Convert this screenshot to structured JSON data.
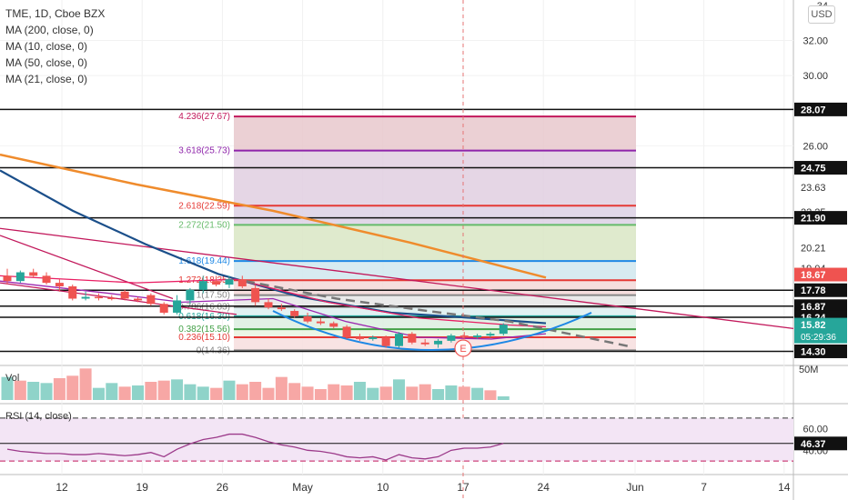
{
  "legend": {
    "title": "TME, 1D, Cboe BZX",
    "indicators": [
      "MA (200, close, 0)",
      "MA (10, close, 0)",
      "MA (50, close, 0)",
      "MA (21, close, 0)"
    ]
  },
  "currency_label": "USD",
  "volume_label": "Vol",
  "rsi_label": "RSI (14, close)",
  "event_marker": "E",
  "chart_data": {
    "type": "candlestick",
    "price_axis": {
      "range": [
        13.6,
        34.3
      ],
      "ticks": [
        "32.00",
        "30.00",
        "26.00"
      ],
      "clipped_top_tick": "34",
      "levels": [
        {
          "label": "28.07",
          "value": 28.07,
          "style": "black"
        },
        {
          "label": "24.75",
          "value": 24.75,
          "style": "black"
        },
        {
          "label": "23.63",
          "value": 23.63,
          "style": "plain"
        },
        {
          "label": "22.25",
          "value": 22.25,
          "style": "plain"
        },
        {
          "label": "21.90",
          "value": 21.9,
          "style": "black"
        },
        {
          "label": "20.21",
          "value": 20.21,
          "style": "plain"
        },
        {
          "label": "19.04",
          "value": 19.04,
          "style": "plain"
        },
        {
          "label": "18.67",
          "value": 18.67,
          "style": "red"
        },
        {
          "label": "17.78",
          "value": 17.78,
          "style": "black"
        },
        {
          "label": "16.87",
          "value": 16.87,
          "style": "black"
        },
        {
          "label": "16.24",
          "value": 16.24,
          "style": "black"
        },
        {
          "label": "15.82",
          "value": 15.82,
          "style": "teal",
          "extra": "05:29:36"
        },
        {
          "label": "14.30",
          "value": 14.3,
          "style": "black"
        }
      ]
    },
    "fibonacci": [
      {
        "label": "4.236(27.67)",
        "value": 27.67,
        "color": "#c2185b"
      },
      {
        "label": "3.618(25.73)",
        "value": 25.73,
        "color": "#8e24aa"
      },
      {
        "label": "2.618(22.59)",
        "value": 22.59,
        "color": "#e53935"
      },
      {
        "label": "2.272(21.50)",
        "value": 21.5,
        "color": "#66bb6a"
      },
      {
        "label": "1.618(19.44)",
        "value": 19.44,
        "color": "#1e88e5"
      },
      {
        "label": "1.272(18.35)",
        "value": 18.35,
        "color": "#e53935"
      },
      {
        "label": "1(17.50)",
        "value": 17.5,
        "color": "#888888"
      },
      {
        "label": "0.786(16.83)",
        "value": 16.83,
        "color": "#888888"
      },
      {
        "label": "0.618(16.30)",
        "value": 16.3,
        "color": "#26a69a"
      },
      {
        "label": "0.382(15.56)",
        "value": 15.56,
        "color": "#43a047"
      },
      {
        "label": "0.236(15.10)",
        "value": 15.1,
        "color": "#e53935"
      },
      {
        "label": "0(14.36)",
        "value": 14.36,
        "color": "#888888"
      }
    ],
    "candles": [
      {
        "i": 0,
        "o": 18.6,
        "h": 19.0,
        "l": 18.1,
        "c": 18.3
      },
      {
        "i": 1,
        "o": 18.3,
        "h": 18.9,
        "l": 18.2,
        "c": 18.8
      },
      {
        "i": 2,
        "o": 18.8,
        "h": 19.0,
        "l": 18.5,
        "c": 18.6
      },
      {
        "i": 3,
        "o": 18.6,
        "h": 18.8,
        "l": 18.1,
        "c": 18.2
      },
      {
        "i": 4,
        "o": 18.2,
        "h": 18.4,
        "l": 17.7,
        "c": 18.0
      },
      {
        "i": 5,
        "o": 18.0,
        "h": 18.1,
        "l": 17.2,
        "c": 17.3
      },
      {
        "i": 6,
        "o": 17.3,
        "h": 17.7,
        "l": 17.2,
        "c": 17.4
      },
      {
        "i": 7,
        "o": 17.4,
        "h": 17.6,
        "l": 17.2,
        "c": 17.35
      },
      {
        "i": 8,
        "o": 17.35,
        "h": 17.5,
        "l": 17.2,
        "c": 17.3
      },
      {
        "i": 9,
        "o": 17.7,
        "h": 17.8,
        "l": 17.2,
        "c": 17.3
      },
      {
        "i": 10,
        "o": 17.3,
        "h": 17.4,
        "l": 17.1,
        "c": 17.2
      },
      {
        "i": 11,
        "o": 17.5,
        "h": 17.6,
        "l": 16.9,
        "c": 17.0
      },
      {
        "i": 12,
        "o": 17.0,
        "h": 17.1,
        "l": 16.4,
        "c": 16.5
      },
      {
        "i": 13,
        "o": 16.5,
        "h": 17.5,
        "l": 16.4,
        "c": 17.2
      },
      {
        "i": 14,
        "o": 17.2,
        "h": 17.9,
        "l": 17.0,
        "c": 17.8
      },
      {
        "i": 15,
        "o": 17.8,
        "h": 18.6,
        "l": 17.6,
        "c": 18.3
      },
      {
        "i": 16,
        "o": 18.3,
        "h": 18.6,
        "l": 18.0,
        "c": 18.1
      },
      {
        "i": 17,
        "o": 18.1,
        "h": 18.6,
        "l": 17.9,
        "c": 18.4
      },
      {
        "i": 18,
        "o": 18.4,
        "h": 18.6,
        "l": 17.9,
        "c": 18.0
      },
      {
        "i": 19,
        "o": 17.9,
        "h": 18.1,
        "l": 16.9,
        "c": 17.1
      },
      {
        "i": 20,
        "o": 17.1,
        "h": 17.3,
        "l": 16.7,
        "c": 16.8
      },
      {
        "i": 21,
        "o": 16.8,
        "h": 17.0,
        "l": 16.6,
        "c": 16.7
      },
      {
        "i": 22,
        "o": 16.6,
        "h": 16.7,
        "l": 16.2,
        "c": 16.3
      },
      {
        "i": 23,
        "o": 16.3,
        "h": 16.5,
        "l": 15.9,
        "c": 16.0
      },
      {
        "i": 24,
        "o": 16.0,
        "h": 16.2,
        "l": 15.8,
        "c": 15.9
      },
      {
        "i": 25,
        "o": 15.9,
        "h": 16.0,
        "l": 15.6,
        "c": 15.7
      },
      {
        "i": 26,
        "o": 15.7,
        "h": 15.8,
        "l": 15.0,
        "c": 15.1
      },
      {
        "i": 27,
        "o": 15.1,
        "h": 15.3,
        "l": 14.9,
        "c": 15.0
      },
      {
        "i": 28,
        "o": 15.0,
        "h": 15.2,
        "l": 14.9,
        "c": 15.1
      },
      {
        "i": 29,
        "o": 15.1,
        "h": 15.2,
        "l": 14.5,
        "c": 14.6
      },
      {
        "i": 30,
        "o": 14.6,
        "h": 15.4,
        "l": 14.5,
        "c": 15.3
      },
      {
        "i": 31,
        "o": 15.3,
        "h": 15.4,
        "l": 14.7,
        "c": 14.8
      },
      {
        "i": 32,
        "o": 14.8,
        "h": 15.0,
        "l": 14.6,
        "c": 14.7
      },
      {
        "i": 33,
        "o": 14.7,
        "h": 15.0,
        "l": 14.5,
        "c": 14.9
      },
      {
        "i": 34,
        "o": 14.9,
        "h": 15.3,
        "l": 14.8,
        "c": 15.2
      },
      {
        "i": 35,
        "o": 15.2,
        "h": 15.4,
        "l": 15.0,
        "c": 15.1
      },
      {
        "i": 36,
        "o": 15.1,
        "h": 15.3,
        "l": 15.0,
        "c": 15.2
      },
      {
        "i": 37,
        "o": 15.2,
        "h": 15.4,
        "l": 15.1,
        "c": 15.3
      },
      {
        "i": 38,
        "o": 15.3,
        "h": 15.9,
        "l": 15.2,
        "c": 15.82
      }
    ],
    "volume": {
      "axis_label": "50M",
      "values": [
        38,
        32,
        30,
        28,
        36,
        40,
        52,
        20,
        28,
        22,
        24,
        30,
        32,
        34,
        26,
        22,
        20,
        32,
        26,
        30,
        20,
        38,
        28,
        22,
        18,
        26,
        24,
        30,
        20,
        22,
        34,
        22,
        26,
        18,
        24,
        22,
        20,
        16,
        6
      ],
      "up": [
        true,
        false,
        true,
        true,
        false,
        false,
        false,
        true,
        true,
        false,
        true,
        false,
        false,
        true,
        true,
        true,
        false,
        true,
        false,
        false,
        false,
        false,
        false,
        false,
        false,
        false,
        false,
        true,
        true,
        false,
        true,
        false,
        false,
        true,
        true,
        false,
        true,
        false,
        true
      ]
    },
    "rsi": {
      "ticks": [
        "60.00",
        "40.00"
      ],
      "current": "46.37",
      "range": [
        20,
        80
      ],
      "upper_band": 70,
      "lower_band": 30,
      "values": [
        41,
        39,
        38,
        37,
        37,
        36,
        36,
        37,
        36,
        35,
        36,
        38,
        34,
        41,
        46,
        50,
        52,
        55,
        55,
        52,
        48,
        45,
        43,
        40,
        39,
        37,
        34,
        33,
        34,
        31,
        36,
        33,
        32,
        34,
        40,
        42,
        42,
        43,
        46.37
      ]
    },
    "x_axis": {
      "ticks": [
        {
          "label": "12",
          "date": "2021-04-12"
        },
        {
          "label": "19",
          "date": "2021-04-19"
        },
        {
          "label": "26",
          "date": "2021-04-26"
        },
        {
          "label": "May",
          "date": "2021-05-03"
        },
        {
          "label": "10",
          "date": "2021-05-10"
        },
        {
          "label": "17",
          "date": "2021-05-17"
        },
        {
          "label": "24",
          "date": "2021-05-24"
        },
        {
          "label": "Jun",
          "date": "2021-06-01"
        },
        {
          "label": "7",
          "date": "2021-06-07"
        },
        {
          "label": "14",
          "date": "2021-06-14"
        }
      ]
    },
    "moving_averages": [
      {
        "name": "MA (200, close, 0)",
        "color": "#ef8b2c",
        "from": 25.5,
        "to": 18.4
      },
      {
        "name": "MA (50, close, 0)",
        "color": "#1b4f8a",
        "from": 24.5,
        "to": 15.9
      },
      {
        "name": "MA (21, close, 0)",
        "color": "#e91e63",
        "from": 18.6,
        "to": 15.8
      },
      {
        "name": "MA (10, close, 0)",
        "color": "#9c27b0",
        "from": 18.3,
        "to": 15.3
      }
    ]
  }
}
